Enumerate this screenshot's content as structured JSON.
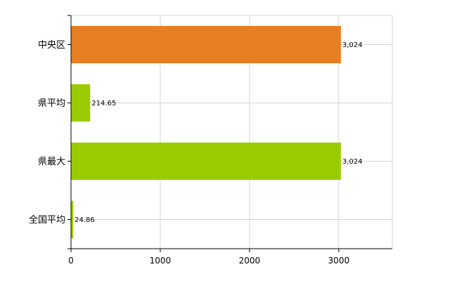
{
  "chart_data": {
    "type": "bar",
    "orientation": "horizontal",
    "categories": [
      "中央区",
      "県平均",
      "県最大",
      "全国平均"
    ],
    "values": [
      3024,
      214.65,
      3024,
      24.86
    ],
    "value_labels": [
      "3,024",
      "214.65",
      "3,024",
      "24.86"
    ],
    "bar_colors": [
      "#e67e22",
      "#99cc00",
      "#99cc00",
      "#99cc00"
    ],
    "xlim": [
      0,
      3600
    ],
    "x_ticks": [
      0,
      1000,
      2000,
      3000
    ],
    "x_tick_labels": [
      "0",
      "1000",
      "2000",
      "3000"
    ],
    "grid": true,
    "title": "",
    "xlabel": "",
    "ylabel": ""
  }
}
